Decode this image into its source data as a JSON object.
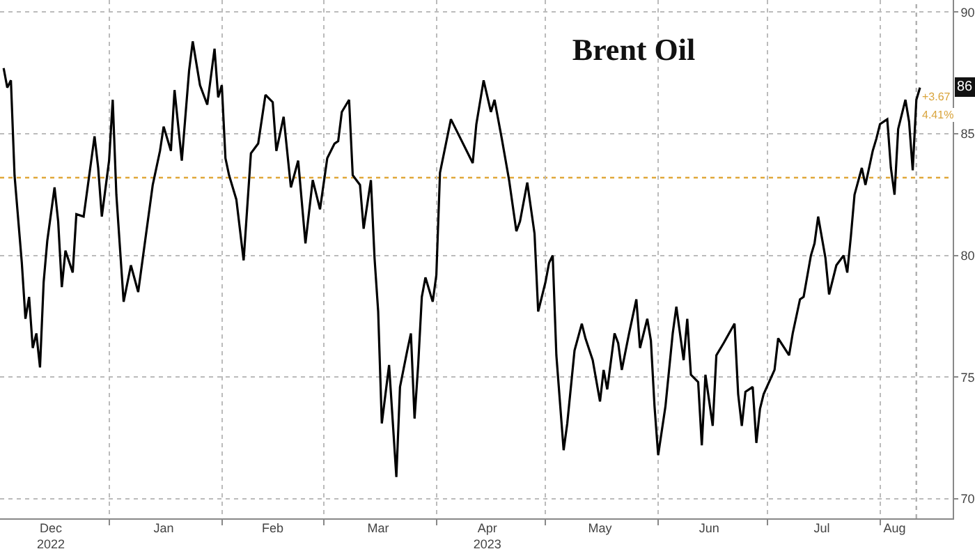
{
  "chart_data": {
    "type": "line",
    "title": "Brent Oil",
    "x": [
      "2022-12-03",
      "2022-12-04",
      "2022-12-05",
      "2022-12-06",
      "2022-12-08",
      "2022-12-09",
      "2022-12-10",
      "2022-12-11",
      "2022-12-12",
      "2022-12-13",
      "2022-12-14",
      "2022-12-15",
      "2022-12-17",
      "2022-12-18",
      "2022-12-19",
      "2022-12-20",
      "2022-12-22",
      "2022-12-23",
      "2022-12-25",
      "2022-12-28",
      "2022-12-29",
      "2022-12-30",
      "2023-01-01",
      "2023-01-02",
      "2023-01-03",
      "2023-01-05",
      "2023-01-07",
      "2023-01-09",
      "2023-01-11",
      "2023-01-13",
      "2023-01-15",
      "2023-01-16",
      "2023-01-18",
      "2023-01-19",
      "2023-01-21",
      "2023-01-23",
      "2023-01-24",
      "2023-01-26",
      "2023-01-28",
      "2023-01-30",
      "2023-01-31",
      "2023-02-01",
      "2023-02-02",
      "2023-02-03",
      "2023-02-05",
      "2023-02-07",
      "2023-02-09",
      "2023-02-11",
      "2023-02-13",
      "2023-02-15",
      "2023-02-16",
      "2023-02-18",
      "2023-02-20",
      "2023-02-22",
      "2023-02-24",
      "2023-02-26",
      "2023-02-28",
      "2023-03-02",
      "2023-03-04",
      "2023-03-05",
      "2023-03-06",
      "2023-03-08",
      "2023-03-09",
      "2023-03-11",
      "2023-03-12",
      "2023-03-14",
      "2023-03-15",
      "2023-03-16",
      "2023-03-17",
      "2023-03-19",
      "2023-03-21",
      "2023-03-22",
      "2023-03-24",
      "2023-03-25",
      "2023-03-26",
      "2023-03-27",
      "2023-03-28",
      "2023-03-29",
      "2023-03-31",
      "2023-04-01",
      "2023-04-02",
      "2023-04-05",
      "2023-04-07",
      "2023-04-11",
      "2023-04-12",
      "2023-04-14",
      "2023-04-16",
      "2023-04-17",
      "2023-04-19",
      "2023-04-21",
      "2023-04-23",
      "2023-04-24",
      "2023-04-26",
      "2023-04-28",
      "2023-04-29",
      "2023-05-01",
      "2023-05-02",
      "2023-05-03",
      "2023-05-04",
      "2023-05-06",
      "2023-05-07",
      "2023-05-09",
      "2023-05-11",
      "2023-05-12",
      "2023-05-14",
      "2023-05-16",
      "2023-05-17",
      "2023-05-18",
      "2023-05-20",
      "2023-05-21",
      "2023-05-22",
      "2023-05-24",
      "2023-05-26",
      "2023-05-27",
      "2023-05-29",
      "2023-05-30",
      "2023-05-31",
      "2023-06-01",
      "2023-06-03",
      "2023-06-05",
      "2023-06-06",
      "2023-06-08",
      "2023-06-09",
      "2023-06-10",
      "2023-06-12",
      "2023-06-13",
      "2023-06-14",
      "2023-06-16",
      "2023-06-17",
      "2023-06-19",
      "2023-06-22",
      "2023-06-23",
      "2023-06-24",
      "2023-06-25",
      "2023-06-27",
      "2023-06-28",
      "2023-06-29",
      "2023-06-30",
      "2023-07-03",
      "2023-07-04",
      "2023-07-07",
      "2023-07-08",
      "2023-07-10",
      "2023-07-11",
      "2023-07-13",
      "2023-07-14",
      "2023-07-15",
      "2023-07-17",
      "2023-07-18",
      "2023-07-20",
      "2023-07-22",
      "2023-07-23",
      "2023-07-24",
      "2023-07-25",
      "2023-07-27",
      "2023-07-28",
      "2023-07-30",
      "2023-07-31",
      "2023-08-01",
      "2023-08-03",
      "2023-08-04",
      "2023-08-05",
      "2023-08-06",
      "2023-08-08",
      "2023-08-09",
      "2023-08-10",
      "2023-08-11",
      "2023-08-12"
    ],
    "series": [
      {
        "color": "#000000",
        "values": [
          87.7,
          86.9,
          87.2,
          83.3,
          79.7,
          77.4,
          78.3,
          76.2,
          76.8,
          75.4,
          78.9,
          80.6,
          82.8,
          81.4,
          78.7,
          80.2,
          79.3,
          81.7,
          81.6,
          84.9,
          83.6,
          81.6,
          83.9,
          86.4,
          82.5,
          78.1,
          79.6,
          78.5,
          80.7,
          82.9,
          84.3,
          85.3,
          84.3,
          86.8,
          83.9,
          87.6,
          88.8,
          87.0,
          86.2,
          88.5,
          86.5,
          87.0,
          84.0,
          83.3,
          82.3,
          79.8,
          84.2,
          84.6,
          86.6,
          86.3,
          84.3,
          85.7,
          82.8,
          83.9,
          80.5,
          83.1,
          81.9,
          84.0,
          84.6,
          84.7,
          85.9,
          86.4,
          83.3,
          82.9,
          81.1,
          83.1,
          79.9,
          77.7,
          73.1,
          75.5,
          70.9,
          74.6,
          76.1,
          76.8,
          73.3,
          75.5,
          78.3,
          79.1,
          78.1,
          79.2,
          83.4,
          85.6,
          85.0,
          83.8,
          85.4,
          87.2,
          85.9,
          86.4,
          84.8,
          83.1,
          81.0,
          81.4,
          83.0,
          80.9,
          77.7,
          78.9,
          79.7,
          80.0,
          75.9,
          72.0,
          73.1,
          76.1,
          77.2,
          76.6,
          75.7,
          74.0,
          75.3,
          74.5,
          76.8,
          76.4,
          75.3,
          76.8,
          78.2,
          76.2,
          77.4,
          76.5,
          73.8,
          71.8,
          73.8,
          76.8,
          77.9,
          75.7,
          77.4,
          75.1,
          74.8,
          72.2,
          75.1,
          73.0,
          75.9,
          76.4,
          77.2,
          74.3,
          73.0,
          74.4,
          74.6,
          72.3,
          73.7,
          74.3,
          75.3,
          76.6,
          75.9,
          76.8,
          78.2,
          78.3,
          80.0,
          80.5,
          81.6,
          79.9,
          78.4,
          79.6,
          80.0,
          79.3,
          80.8,
          82.5,
          83.6,
          82.9,
          84.3,
          84.8,
          85.4,
          85.6,
          83.6,
          82.5,
          85.2,
          86.4,
          85.5,
          83.5,
          86.4,
          86.9
        ]
      }
    ],
    "xlim": [
      "2022-12-02",
      "2023-08-21"
    ],
    "xticks": [
      {
        "value": "2022-12-16",
        "label": "Dec\n2022"
      },
      {
        "value": "2023-01-16",
        "label": "Jan"
      },
      {
        "value": "2023-02-15",
        "label": "Feb"
      },
      {
        "value": "2023-03-16",
        "label": "Mar"
      },
      {
        "value": "2023-04-15",
        "label": "Apr\n2023"
      },
      {
        "value": "2023-05-16",
        "label": "May"
      },
      {
        "value": "2023-06-15",
        "label": "Jun"
      },
      {
        "value": "2023-07-16",
        "label": "Jul"
      },
      {
        "value": "2023-08-05",
        "label": "Aug"
      },
      {
        "value": "2023-01-01",
        "label": null
      },
      {
        "value": "2023-02-01",
        "label": null
      },
      {
        "value": "2023-03-01",
        "label": null
      },
      {
        "value": "2023-04-01",
        "label": null
      },
      {
        "value": "2023-05-01",
        "label": null
      },
      {
        "value": "2023-06-01",
        "label": null
      },
      {
        "value": "2023-07-01",
        "label": null
      },
      {
        "value": "2023-08-01",
        "label": null
      }
    ],
    "ylim": [
      69.2,
      90.5
    ],
    "yticks": [
      70,
      75,
      80,
      85,
      90
    ],
    "grid": true,
    "ref_lines": [
      {
        "axis": "y",
        "value": 83.2,
        "color": "#e0a83a",
        "line_style": "dotted"
      },
      {
        "axis": "x",
        "value": "2023-08-11",
        "color": "#b0b0b0",
        "line_style": "dotted"
      }
    ],
    "annotations": [
      {
        "text": "+3.67",
        "x": "2023-08-12",
        "y": 86.5
      },
      {
        "text": "4.41%",
        "x": "2023-08-12",
        "y": 85.8
      },
      "86"
    ]
  }
}
